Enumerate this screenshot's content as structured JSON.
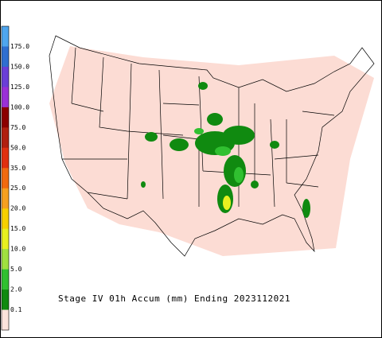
{
  "legend": {
    "labels": [
      "175.0",
      "150.0",
      "125.0",
      "100.0",
      "75.0",
      "50.0",
      "35.0",
      "25.0",
      "20.0",
      "15.0",
      "10.0",
      "5.0",
      "2.0",
      "0.1"
    ],
    "colors": [
      "#4fa6ee",
      "#2f6fd0",
      "#6a3fd8",
      "#9a30d8",
      "#8b0000",
      "#b02010",
      "#e03010",
      "#f06a10",
      "#f5a020",
      "#f7d000",
      "#e8f020",
      "#a0e040",
      "#30c030",
      "#108a10",
      "#fbe3dc"
    ]
  },
  "caption": "Stage IV 01h Accum (mm) Ending 2023112021"
}
